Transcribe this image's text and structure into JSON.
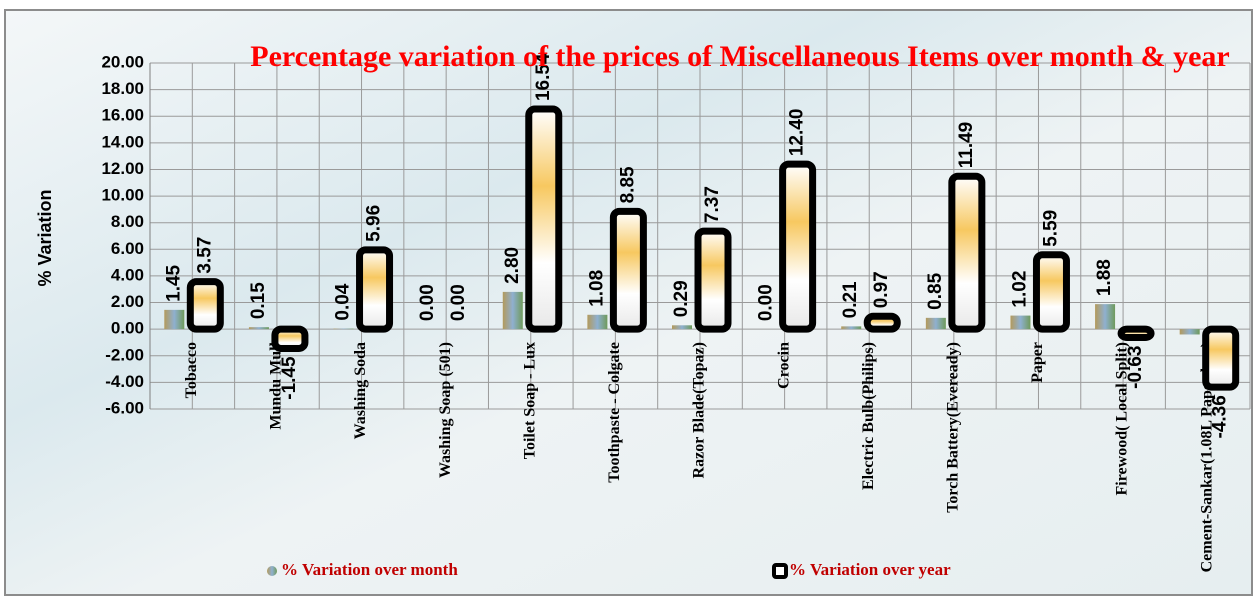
{
  "chart_data": {
    "type": "bar",
    "title": "Percentage variation of the prices of Miscellaneous Items over month & year",
    "y_label": "% Variation",
    "categories": [
      "Tobacco",
      "Mundu Mull",
      "Washing Soda",
      "Washing Soap (501)",
      "Toilet Soap - Lux",
      "Toothpaste - Colgate",
      "Razor Blade(Topaz)",
      "Crocin",
      "Electric Bulb(Philips)",
      "Torch Battery(Eveready)",
      "Paper",
      "Firewood( Local Split)",
      "Cement-Sankar(1.08L Paper bag)"
    ],
    "series": [
      {
        "name": "% Variation over month",
        "color": "#8fa88a",
        "values": [
          1.45,
          0.15,
          0.04,
          0,
          2.8,
          1.08,
          0.29,
          0,
          0.21,
          0.85,
          1.02,
          1.88,
          -0.4
        ],
        "value_labels": [
          "1.45",
          "0.15",
          "0.04",
          "0.00",
          "2.80",
          "1.08",
          "0.29",
          "0.00",
          "0.21",
          "0.85",
          "1.02",
          "1.88",
          null
        ]
      },
      {
        "name": "% Variation over year",
        "color": "#000000",
        "values": [
          3.57,
          -1.45,
          5.96,
          0,
          16.54,
          8.85,
          7.37,
          12.4,
          0.97,
          11.49,
          5.59,
          -0.63,
          -4.36
        ],
        "value_labels": [
          "3.57",
          "-1.45",
          "5.96",
          "0.00",
          "16.54",
          "8.85",
          "7.37",
          "12.40",
          "0.97",
          "11.49",
          "5.59",
          "-0.63",
          "-4.36"
        ]
      }
    ],
    "ylim": [
      -6,
      20
    ],
    "yticks": [
      {
        "value": -6,
        "label": "-6.00"
      },
      {
        "value": -4,
        "label": "-4.00"
      },
      {
        "value": -2,
        "label": "-2.00"
      },
      {
        "value": 0,
        "label": "0.00"
      },
      {
        "value": 2,
        "label": "2.00"
      },
      {
        "value": 4,
        "label": "4.00"
      },
      {
        "value": 6,
        "label": "6.00"
      },
      {
        "value": 8,
        "label": "8.00"
      },
      {
        "value": 10,
        "label": "10.00"
      },
      {
        "value": 12,
        "label": "12.00"
      },
      {
        "value": 14,
        "label": "14.00"
      },
      {
        "value": 16,
        "label": "16.00"
      },
      {
        "value": 18,
        "label": "18.00"
      },
      {
        "value": 20,
        "label": "20.00"
      }
    ],
    "grid": true
  }
}
